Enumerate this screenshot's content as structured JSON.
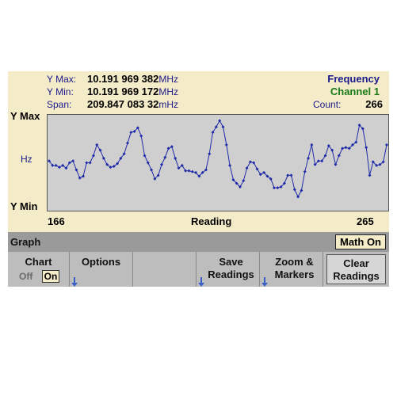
{
  "header": {
    "ymax_label": "Y Max:",
    "ymax_value": "10.191 969 382",
    "ymax_unit": "MHz",
    "ymin_label": "Y Min:",
    "ymin_value": "10.191 969 172",
    "ymin_unit": "MHz",
    "span_label": "Span:",
    "span_value": "209.847 083 32",
    "span_unit": "mHz",
    "measurement": "Frequency",
    "channel": "Channel 1",
    "count_label": "Count:",
    "count_value": "266"
  },
  "chart": {
    "y_top_label": "Y Max",
    "y_mid_label": "Hz",
    "y_bottom_label": "Y Min",
    "x_start": "166",
    "x_label": "Reading",
    "x_end": "265"
  },
  "chart_data": {
    "type": "line",
    "xlabel": "Reading",
    "ylabel": "Hz",
    "xlim": [
      166,
      265
    ],
    "ylim": [
      0,
      1
    ],
    "x": [
      166,
      167,
      168,
      169,
      170,
      171,
      172,
      173,
      174,
      175,
      176,
      177,
      178,
      179,
      180,
      181,
      182,
      183,
      184,
      185,
      186,
      187,
      188,
      189,
      190,
      191,
      192,
      193,
      194,
      195,
      196,
      197,
      198,
      199,
      200,
      201,
      202,
      203,
      204,
      205,
      206,
      207,
      208,
      209,
      210,
      211,
      212,
      213,
      214,
      215,
      216,
      217,
      218,
      219,
      220,
      221,
      222,
      223,
      224,
      225,
      226,
      227,
      228,
      229,
      230,
      231,
      232,
      233,
      234,
      235,
      236,
      237,
      238,
      239,
      240,
      241,
      242,
      243,
      244,
      245,
      246,
      247,
      248,
      249,
      250,
      251,
      252,
      253,
      254,
      255,
      256,
      257,
      258,
      259,
      260,
      261,
      262,
      263,
      264,
      265
    ],
    "values": [
      0.52,
      0.47,
      0.47,
      0.45,
      0.47,
      0.44,
      0.5,
      0.52,
      0.42,
      0.33,
      0.35,
      0.5,
      0.5,
      0.58,
      0.7,
      0.64,
      0.55,
      0.48,
      0.45,
      0.46,
      0.49,
      0.55,
      0.6,
      0.72,
      0.84,
      0.85,
      0.89,
      0.8,
      0.58,
      0.5,
      0.42,
      0.32,
      0.36,
      0.48,
      0.56,
      0.66,
      0.68,
      0.55,
      0.44,
      0.47,
      0.41,
      0.41,
      0.4,
      0.39,
      0.35,
      0.39,
      0.42,
      0.6,
      0.84,
      0.9,
      0.97,
      0.9,
      0.7,
      0.47,
      0.31,
      0.27,
      0.23,
      0.3,
      0.44,
      0.51,
      0.5,
      0.43,
      0.37,
      0.39,
      0.35,
      0.32,
      0.22,
      0.22,
      0.23,
      0.27,
      0.36,
      0.36,
      0.2,
      0.12,
      0.19,
      0.4,
      0.55,
      0.7,
      0.48,
      0.52,
      0.52,
      0.58,
      0.69,
      0.64,
      0.48,
      0.58,
      0.66,
      0.67,
      0.66,
      0.7,
      0.73,
      0.92,
      0.88,
      0.67,
      0.36,
      0.51,
      0.47,
      0.48,
      0.51,
      0.7
    ]
  },
  "graph_bar": {
    "title": "Graph",
    "math_button": "Math On"
  },
  "softkeys": {
    "chart_title": "Chart",
    "chart_off": "Off",
    "chart_on": "On",
    "options": "Options",
    "save_line1": "Save",
    "save_line2": "Readings",
    "zoom_line1": "Zoom &",
    "zoom_line2": "Markers",
    "clear_line1": "Clear",
    "clear_line2": "Readings"
  },
  "colors": {
    "background": "#f4ebc8",
    "trace": "#1f2aa8",
    "plot_bg": "#cfcfcf",
    "channel": "#1a7a1a",
    "label_blue": "#1a1a8c"
  }
}
